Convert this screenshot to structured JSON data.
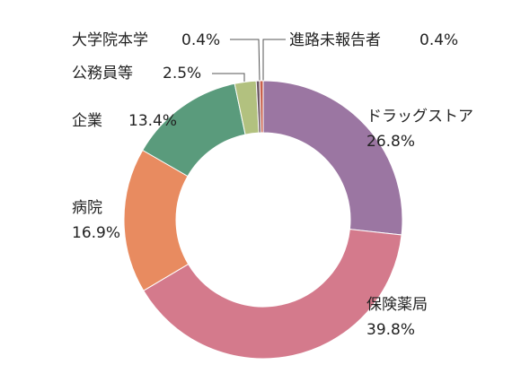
{
  "chart_data": {
    "type": "donut",
    "categories": [
      "ドラッグストア",
      "保険薬局",
      "病院",
      "企業",
      "公務員等",
      "大学院本学",
      "進路未報告者"
    ],
    "values": [
      26.8,
      39.8,
      16.9,
      13.4,
      2.5,
      0.4,
      0.4
    ],
    "value_labels": [
      "26.8%",
      "39.8%",
      "16.9%",
      "13.4%",
      "2.5%",
      "0.4%",
      "0.4%"
    ],
    "colors": [
      "#9b76a2",
      "#d47a8c",
      "#e88b60",
      "#5a9b7c",
      "#b2c17f",
      "#6e5a66",
      "#c9604c"
    ]
  }
}
